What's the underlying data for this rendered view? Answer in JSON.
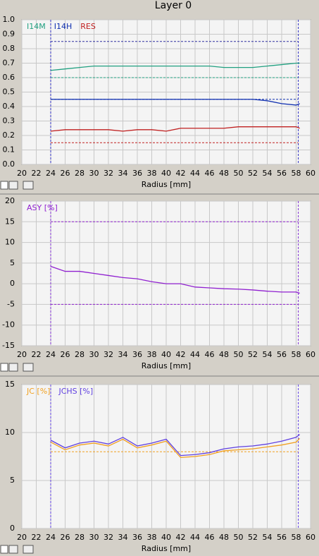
{
  "title": "Layer 0",
  "chart_data": [
    {
      "type": "line",
      "xlabel": "Radius [mm]",
      "xlim": [
        20,
        60
      ],
      "xticks": [
        20,
        22,
        24,
        26,
        28,
        30,
        32,
        34,
        36,
        38,
        40,
        42,
        44,
        46,
        48,
        50,
        52,
        54,
        56,
        58,
        60
      ],
      "ylim": [
        0,
        1
      ],
      "yticks": [
        {
          "value": 0,
          "label": "0.0"
        },
        0.1,
        0.2,
        0.3,
        0.4,
        0.5,
        0.6,
        0.7,
        0.8,
        0.9,
        {
          "value": 1,
          "label": "1.0"
        }
      ],
      "grid": true,
      "x": [
        24,
        26,
        28,
        30,
        32,
        34,
        36,
        38,
        40,
        42,
        44,
        46,
        48,
        50,
        52,
        54,
        56,
        58,
        58.5
      ],
      "series": [
        {
          "name": "I14M",
          "color": "#20a080",
          "values": [
            0.65,
            0.66,
            0.67,
            0.68,
            0.68,
            0.68,
            0.68,
            0.68,
            0.68,
            0.68,
            0.68,
            0.68,
            0.67,
            0.67,
            0.67,
            0.68,
            0.69,
            0.7,
            0.7
          ]
        },
        {
          "name": "I14H",
          "color": "#1030b0",
          "values": [
            0.45,
            0.45,
            0.45,
            0.45,
            0.45,
            0.45,
            0.45,
            0.45,
            0.45,
            0.45,
            0.45,
            0.45,
            0.45,
            0.45,
            0.45,
            0.44,
            0.42,
            0.41,
            0.42
          ]
        },
        {
          "name": "RES",
          "color": "#c02020",
          "values": [
            0.23,
            0.24,
            0.24,
            0.24,
            0.24,
            0.23,
            0.24,
            0.24,
            0.23,
            0.25,
            0.25,
            0.25,
            0.25,
            0.26,
            0.26,
            0.26,
            0.26,
            0.26,
            0.25
          ]
        }
      ],
      "reference_lines": [
        {
          "value": 0.85,
          "color": "#3030a0"
        },
        {
          "value": 0.6,
          "color": "#20a080"
        },
        {
          "value": 0.45,
          "color": "#1030b0"
        },
        {
          "value": 0.15,
          "color": "#c02020"
        }
      ],
      "vlines": [
        24,
        58.3
      ],
      "vline_color": "#3030c0"
    },
    {
      "type": "line",
      "xlabel": "Radius [mm]",
      "xlim": [
        20,
        60
      ],
      "xticks": [
        20,
        22,
        24,
        26,
        28,
        30,
        32,
        34,
        36,
        38,
        40,
        42,
        44,
        46,
        48,
        50,
        52,
        54,
        56,
        58,
        60
      ],
      "ylim": [
        -15,
        20
      ],
      "yticks": [
        -15,
        -10,
        -5,
        0,
        5,
        10,
        15,
        20
      ],
      "grid": true,
      "x": [
        24,
        26,
        28,
        30,
        32,
        34,
        36,
        38,
        40,
        42,
        44,
        46,
        48,
        50,
        52,
        54,
        56,
        58,
        58.5
      ],
      "series": [
        {
          "name": "ASY [%]",
          "color": "#9020d0",
          "values": [
            4.2,
            3,
            3,
            2.5,
            2,
            1.5,
            1.2,
            0.5,
            0,
            0,
            -0.8,
            -1,
            -1.2,
            -1.3,
            -1.5,
            -1.8,
            -2,
            -2,
            -2.3
          ]
        }
      ],
      "reference_lines": [
        {
          "value": 15,
          "color": "#9020d0"
        },
        {
          "value": -5,
          "color": "#9020d0"
        }
      ],
      "vlines": [
        24,
        58.3
      ],
      "vline_color": "#8030d0"
    },
    {
      "type": "line",
      "xlabel": "Radius [mm]",
      "xlim": [
        20,
        60
      ],
      "xticks": [
        20,
        22,
        24,
        26,
        28,
        30,
        32,
        34,
        36,
        38,
        40,
        42,
        44,
        46,
        48,
        50,
        52,
        54,
        56,
        58,
        60
      ],
      "ylim": [
        0,
        15
      ],
      "yticks": [
        0,
        5,
        10,
        15
      ],
      "grid": true,
      "x": [
        24,
        26,
        28,
        30,
        32,
        34,
        36,
        38,
        40,
        42,
        44,
        46,
        48,
        50,
        52,
        54,
        56,
        58,
        58.5
      ],
      "series": [
        {
          "name": "JC [%]",
          "color": "#f0a020",
          "values": [
            9,
            8.2,
            8.7,
            8.9,
            8.6,
            9.3,
            8.4,
            8.7,
            9.1,
            7.4,
            7.5,
            7.7,
            8.1,
            8.2,
            8.3,
            8.5,
            8.7,
            9,
            9.4
          ]
        },
        {
          "name": "JCHS [%]",
          "color": "#6040e0",
          "values": [
            9.2,
            8.4,
            8.9,
            9.1,
            8.8,
            9.5,
            8.6,
            8.9,
            9.3,
            7.6,
            7.7,
            7.9,
            8.3,
            8.5,
            8.6,
            8.8,
            9.1,
            9.5,
            9.8
          ]
        }
      ],
      "reference_lines": [
        {
          "value": 8,
          "color": "#f0a020"
        }
      ],
      "vlines": [
        24,
        58.3
      ],
      "vline_color": "#6040e0"
    }
  ]
}
